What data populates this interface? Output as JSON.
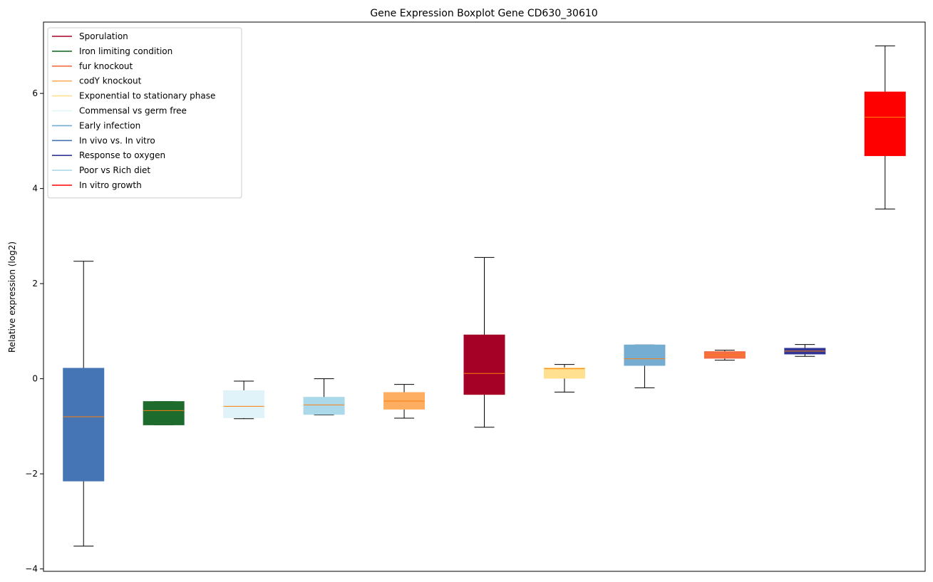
{
  "chart_data": {
    "type": "boxplot",
    "title": "Gene Expression Boxplot Gene CD630_30610",
    "xlabel": "",
    "ylabel": "Relative expression (log2)",
    "ylim": [
      -4.05,
      7.5
    ],
    "yticks": [
      -4,
      -2,
      0,
      2,
      4,
      6
    ],
    "ytick_labels": [
      "−4",
      "−2",
      "0",
      "2",
      "4",
      "6"
    ],
    "grid": false,
    "legend_position": "upper-left",
    "legend": [
      {
        "label": "Sporulation",
        "color": "#a50026"
      },
      {
        "label": "Iron limiting condition",
        "color": "#1e6b2e"
      },
      {
        "label": "fur knockout",
        "color": "#f46d43"
      },
      {
        "label": "codY knockout",
        "color": "#fdae61"
      },
      {
        "label": "Exponential to stationary phase",
        "color": "#fee090"
      },
      {
        "label": "Commensal vs germ free",
        "color": "#e0f3f8"
      },
      {
        "label": "Early infection",
        "color": "#74add1"
      },
      {
        "label": "In vivo vs. In vitro",
        "color": "#4575b4"
      },
      {
        "label": "Response to oxygen",
        "color": "#313695"
      },
      {
        "label": "Poor vs Rich diet",
        "color": "#abd9e9"
      },
      {
        "label": "In vitro growth",
        "color": "#ff0000"
      }
    ],
    "median_color": "#ff7f0e",
    "boxes": [
      {
        "condition": "In vivo vs. In vitro",
        "color": "#4575b4",
        "whislo": -3.52,
        "q1": -2.15,
        "med": -0.8,
        "q3": 0.22,
        "whishi": 2.47
      },
      {
        "condition": "Iron limiting condition",
        "color": "#1e6b2e",
        "whislo": -0.97,
        "q1": -0.97,
        "med": -0.67,
        "q3": -0.48,
        "whishi": -0.48
      },
      {
        "condition": "Commensal vs germ free",
        "color": "#e0f3f8",
        "whislo": -0.84,
        "q1": -0.82,
        "med": -0.58,
        "q3": -0.25,
        "whishi": -0.05
      },
      {
        "condition": "Poor vs Rich diet",
        "color": "#abd9e9",
        "whislo": -0.76,
        "q1": -0.75,
        "med": -0.55,
        "q3": -0.39,
        "whishi": 0.0
      },
      {
        "condition": "codY knockout",
        "color": "#fdae61",
        "whislo": -0.83,
        "q1": -0.64,
        "med": -0.47,
        "q3": -0.29,
        "whishi": -0.12
      },
      {
        "condition": "Sporulation",
        "color": "#a50026",
        "whislo": -1.02,
        "q1": -0.33,
        "med": 0.11,
        "q3": 0.92,
        "whishi": 2.55
      },
      {
        "condition": "Exponential to stationary phase",
        "color": "#fee090",
        "whislo": -0.28,
        "q1": 0.01,
        "med": 0.21,
        "q3": 0.23,
        "whishi": 0.3
      },
      {
        "condition": "Early infection",
        "color": "#74add1",
        "whislo": -0.19,
        "q1": 0.28,
        "med": 0.42,
        "q3": 0.71,
        "whishi": 0.71
      },
      {
        "condition": "fur knockout",
        "color": "#f46d43",
        "whislo": 0.39,
        "q1": 0.43,
        "med": 0.5,
        "q3": 0.57,
        "whishi": 0.6
      },
      {
        "condition": "Response to oxygen",
        "color": "#313695",
        "whislo": 0.47,
        "q1": 0.52,
        "med": 0.58,
        "q3": 0.64,
        "whishi": 0.72
      },
      {
        "condition": "In vitro growth",
        "color": "#ff0000",
        "whislo": 3.57,
        "q1": 4.69,
        "med": 5.5,
        "q3": 6.03,
        "whishi": 7.0
      }
    ]
  }
}
